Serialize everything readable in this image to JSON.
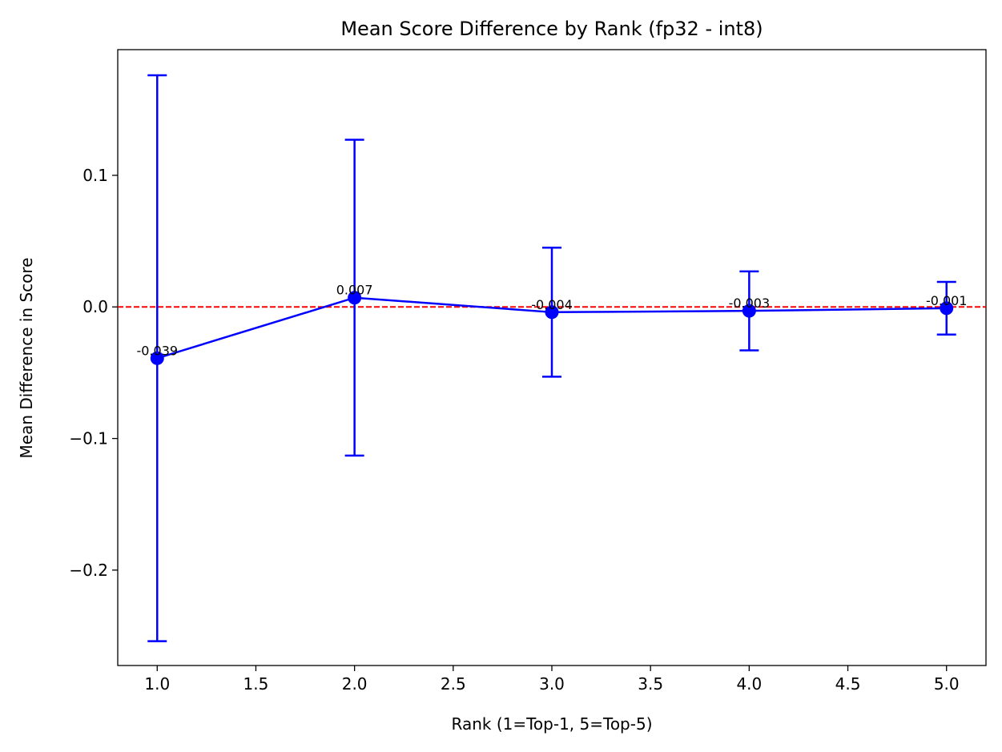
{
  "chart_data": {
    "type": "line",
    "title": "Mean Score Difference by Rank (fp32 - int8)",
    "xlabel": "Rank (1=Top-1, 5=Top-5)",
    "ylabel": "Mean Difference in Score",
    "xlim": [
      0.8,
      5.2
    ],
    "ylim": [
      -0.2725,
      0.1955
    ],
    "x_ticks": [
      1.0,
      1.5,
      2.0,
      2.5,
      3.0,
      3.5,
      4.0,
      4.5,
      5.0
    ],
    "x_tick_labels": [
      "1.0",
      "1.5",
      "2.0",
      "2.5",
      "3.0",
      "3.5",
      "4.0",
      "4.5",
      "5.0"
    ],
    "y_ticks": [
      -0.2,
      -0.1,
      0.0,
      0.1
    ],
    "y_tick_labels": [
      "−0.2",
      "−0.1",
      "0.0",
      "0.1"
    ],
    "grid": false,
    "series": [
      {
        "x": [
          1,
          2,
          3,
          4,
          5
        ],
        "y": [
          -0.039,
          0.007,
          -0.004,
          -0.003,
          -0.001
        ],
        "error": [
          0.215,
          0.12,
          0.049,
          0.03,
          0.02
        ],
        "point_labels": [
          "-0.039",
          "0.007",
          "-0.004",
          "-0.003",
          "-0.001"
        ],
        "color": "#0000ff",
        "marker": "circle"
      }
    ],
    "reference_line": {
      "y": 0,
      "color": "#ff0000",
      "style": "dashed"
    },
    "axis_color": "#000000",
    "background": "#ffffff"
  }
}
